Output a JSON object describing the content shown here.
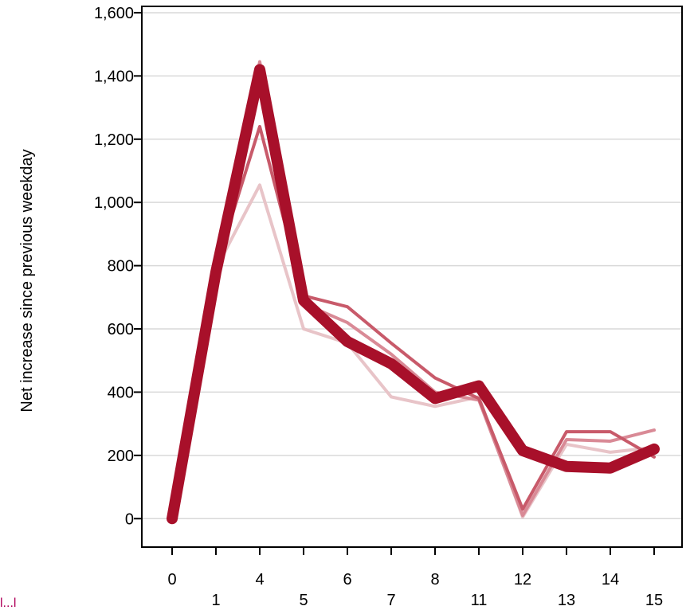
{
  "chart_data": {
    "type": "line",
    "title": "",
    "xlabel": "",
    "ylabel": "Net increase since previous weekday",
    "categories": [
      "0",
      "1",
      "4",
      "5",
      "6",
      "7",
      "8",
      "11",
      "12",
      "13",
      "14",
      "15"
    ],
    "ylim": [
      -90,
      1620
    ],
    "yticks": [
      0,
      200,
      400,
      600,
      800,
      1000,
      1200,
      1400,
      1600
    ],
    "ytick_labels": [
      "0",
      "200",
      "400",
      "600",
      "800",
      "1,000",
      "1,200",
      "1,400",
      "1,600"
    ],
    "grid": true,
    "legend": "none",
    "series": [
      {
        "name": "",
        "color": "#e8c4c8",
        "opacity": 1,
        "stroke": 4,
        "values": [
          0,
          790,
          1055,
          600,
          555,
          385,
          355,
          385,
          5,
          235,
          210,
          225
        ]
      },
      {
        "name": "",
        "color": "#d98a96",
        "opacity": 1,
        "stroke": 4,
        "values": [
          0,
          800,
          1445,
          680,
          620,
          520,
          400,
          375,
          10,
          250,
          245,
          280
        ]
      },
      {
        "name": "",
        "color": "#c85a6a",
        "opacity": 1,
        "stroke": 4,
        "values": [
          0,
          795,
          1240,
          705,
          670,
          555,
          445,
          380,
          30,
          275,
          275,
          195
        ]
      },
      {
        "name": "",
        "color": "#a8102a",
        "opacity": 1,
        "stroke": 14,
        "values": [
          0,
          780,
          1420,
          690,
          560,
          490,
          380,
          420,
          215,
          165,
          160,
          220
        ]
      }
    ]
  },
  "stray_text": "l...l"
}
